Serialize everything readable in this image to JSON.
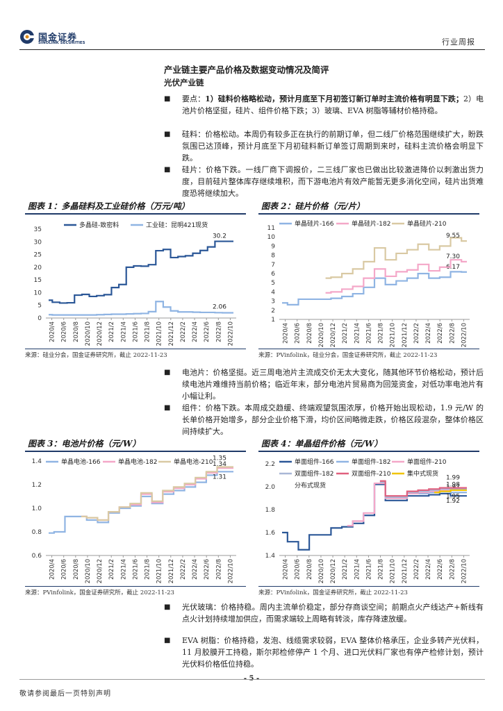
{
  "header": {
    "logo_cn": "国金证券",
    "logo_en": "SINOLINK SECURITIES",
    "report_type": "行业周报"
  },
  "section_title": "产业链主要产品价格及数据变动情况及简评",
  "sub_title": "光伏产业链",
  "bullets_top": [
    {
      "parts": [
        {
          "t": "要点：",
          "b": false
        },
        {
          "t": "1）硅料价格略松动，预计月底至下月初签订新订单时主流价格有明显下跌；",
          "b": true
        },
        {
          "t": "2）电池片价格坚挺，硅片、组件价格下跌；3）玻璃、EVA 树脂等辅材价格持稳。",
          "b": false
        }
      ]
    },
    {
      "parts": [
        {
          "t": "硅料：价格松动。本周仍有较多正在执行的前期订单，但二线厂价格范围继续扩大，盼跌氛围已达顶峰，预计月底至下月初硅料新订单签订周期到来时，硅料主流价格会明显下跌。",
          "b": false
        }
      ]
    },
    {
      "parts": [
        {
          "t": "硅片：价格下跌。一线厂商下调报价，二三线厂家也已做出比较激进降价以刺激出货力度，目前硅片整体库存继续堆积，而下游电池片有效产能暂无更多消化空间，硅片出货难度恐将继续加大。",
          "b": false
        }
      ]
    }
  ],
  "bullets_mid": [
    {
      "parts": [
        {
          "t": "电池片：价格坚挺。近三周电池片主流成交价无太大变化，随其他环节价格松动，预计后续电池片难维持当前价格；临近年末，部分电池片贸易商为回笼资金，对低功率电池片有小幅让利。",
          "b": false
        }
      ]
    },
    {
      "parts": [
        {
          "t": "组件：价格下跌。本周成交趋缓、终端观望氛围浓厚，价格开始出现松动，1.9 元/W 的长单价格开始增多，部分企业价格下滑，均价区间略微走跌，价格区段混杂，整体价格区间持续扩大。",
          "b": false
        }
      ]
    }
  ],
  "bullets_bottom": [
    {
      "parts": [
        {
          "t": "光伏玻璃：价格持稳。周内主流单价稳定，部分存商谈空间；前期点火产线达产+新线有点火计划持续增加供应，而需求端较上周略有转淡，库存降速放缓。",
          "b": false
        }
      ]
    },
    {
      "parts": [
        {
          "t": "EVA 树脂：价格持稳，发泡、线缆需求较弱，EVA 整体价格承压，企业多转产光伏料，11 月胶膜开工持稳，斯尔邦检修停产 1 个月、进口光伏料厂家也有停产检修计划，预计光伏料价格低位持稳。",
          "b": false
        }
      ]
    }
  ],
  "figures": [
    {
      "title": "图表 1：多晶硅料及工业硅价格（万元/吨）",
      "source": "来源：硅业分会，国金证券研究所，截止 2022-11-23"
    },
    {
      "title": "图表 2：硅片价格（元/片）",
      "source": "来源：PVinfolink，硅业分会，国金证券研究所，截止 2022-11-23"
    },
    {
      "title": "图表 3：电池片价格（元/W）",
      "source": "来源：PVinfolink，国金证券研究所，截止 2022-11-23"
    },
    {
      "title": "图表 4：单晶组件价格（元/W）",
      "source": "来源：PVinfolink，国金证券研究所，截止 2022-11-23"
    }
  ],
  "chart_data": [
    {
      "type": "line",
      "x_ticks": [
        "2020/4",
        "2020/6",
        "2020/8",
        "2020/10",
        "2020/12",
        "2021/2",
        "2021/4",
        "2021/6",
        "2021/8",
        "2021/10",
        "2021/12",
        "2022/2",
        "2022/4",
        "2022/6",
        "2022/8",
        "2022/10"
      ],
      "ylim": [
        0,
        35
      ],
      "y_ticks": [
        0,
        5,
        10,
        15,
        20,
        25,
        30,
        35
      ],
      "colors": [
        "#2b5797",
        "#8fb4e3"
      ],
      "series": [
        {
          "name": "多晶硅-致密料",
          "values": [
            7,
            6.2,
            5.9,
            6,
            9,
            9.3,
            8.5,
            8.8,
            9.2,
            12,
            13.2,
            20,
            20.5,
            20.4,
            21,
            26.5,
            27,
            23.8,
            24.2,
            24.5,
            25.5,
            26.6,
            28,
            30.2,
            30.2,
            30.2
          ],
          "end_label": "30.2"
        },
        {
          "name": "工业硅：昆明421现货",
          "values": [
            1.3,
            1.2,
            1.2,
            1.2,
            1.2,
            1.2,
            1.2,
            1.3,
            1.4,
            1.5,
            1.5,
            1.6,
            1.7,
            1.8,
            2.5,
            6.5,
            4.3,
            2.8,
            2.4,
            2.4,
            2.3,
            2.2,
            2.2,
            2.1,
            2.06,
            2.06
          ],
          "end_label": "2.06"
        }
      ]
    },
    {
      "type": "line",
      "x_ticks": [
        "2020/4",
        "2020/6",
        "2020/8",
        "2020/10",
        "2020/12",
        "2021/2",
        "2021/4",
        "2021/6",
        "2021/8",
        "2021/10",
        "2021/12",
        "2022/2",
        "2022/4",
        "2022/6",
        "2022/8",
        "2022/10"
      ],
      "ylim": [
        1,
        11
      ],
      "y_ticks": [
        1,
        2,
        3,
        4,
        5,
        6,
        7,
        8,
        9,
        10,
        11
      ],
      "colors": [
        "#8fb4e3",
        "#f4a7c8",
        "#d9c9a3"
      ],
      "series": [
        {
          "name": "单晶硅片-166",
          "values": [
            2.8,
            2.6,
            3.2,
            3.2,
            3.2,
            3.3,
            3.5,
            3.8,
            4.5,
            5.5,
            4.8,
            5.2,
            5.5,
            6.0,
            5.5,
            5.6,
            6.2,
            6.17
          ],
          "end_label": "6.17"
        },
        {
          "name": "单晶硅片-182",
          "values": [
            null,
            null,
            null,
            null,
            3.9,
            4.0,
            4.3,
            4.6,
            5.5,
            6.5,
            5.7,
            6.2,
            6.4,
            7.0,
            6.3,
            6.7,
            7.5,
            7.3
          ],
          "end_label": "7.30"
        },
        {
          "name": "单晶硅片-210",
          "values": [
            null,
            null,
            null,
            null,
            5.5,
            5.6,
            6.0,
            6.5,
            7.3,
            8.8,
            7.5,
            8.2,
            8.6,
            9.2,
            8.6,
            9.0,
            9.9,
            9.55
          ],
          "end_label": "9.55"
        }
      ]
    },
    {
      "type": "line",
      "x_ticks": [
        "2020/4",
        "2020/6",
        "2020/8",
        "2020/10",
        "2020/12",
        "2021/2",
        "2021/4",
        "2021/6",
        "2021/8",
        "2021/10",
        "2021/12",
        "2022/2",
        "2022/4",
        "2022/6",
        "2022/8",
        "2022/10"
      ],
      "ylim": [
        0.6,
        1.4
      ],
      "y_ticks": [
        0.6,
        0.8,
        1.0,
        1.2,
        1.4
      ],
      "colors": [
        "#8fb4e3",
        "#f4a7c8",
        "#d9c9a3"
      ],
      "series": [
        {
          "name": "单晶电池-166",
          "values": [
            0.79,
            0.8,
            0.93,
            0.93,
            0.9,
            0.88,
            0.96,
            1.0,
            1.02,
            1.1,
            1.04,
            1.12,
            1.15,
            1.18,
            1.22,
            1.28,
            1.31,
            1.31
          ],
          "end_label": "1.31"
        },
        {
          "name": "单晶电池-182",
          "values": [
            null,
            null,
            null,
            0.93,
            0.92,
            0.9,
            0.97,
            1.01,
            1.03,
            1.12,
            1.05,
            1.14,
            1.17,
            1.2,
            1.25,
            1.3,
            1.34,
            1.34
          ],
          "end_label": "1.34"
        },
        {
          "name": "单晶电池-210",
          "values": [
            null,
            null,
            null,
            0.93,
            0.92,
            0.9,
            0.97,
            1.01,
            1.04,
            1.13,
            1.06,
            1.15,
            1.18,
            1.21,
            1.26,
            1.31,
            1.35,
            1.35
          ],
          "end_label": "1.35"
        }
      ]
    },
    {
      "type": "line",
      "x_ticks": [
        "2020/4",
        "2020/6",
        "2020/8",
        "2020/10",
        "2020/12",
        "2021/2",
        "2021/4",
        "2021/6",
        "2021/8",
        "2021/10",
        "2021/12",
        "2022/2",
        "2022/4",
        "2022/6",
        "2022/8",
        "2022/10"
      ],
      "ylim": [
        1.4,
        2.2
      ],
      "y_ticks": [
        1.4,
        1.6,
        1.8,
        2.0,
        2.2
      ],
      "colors": [
        "#2b5797",
        "#8fb4e3",
        "#f4a7c8",
        "#a9b7d6",
        "#e0607e",
        "#f0c400"
      ],
      "series": [
        {
          "name": "单面组件-166",
          "values": [
            1.6,
            1.52,
            1.45,
            1.58,
            1.58,
            1.64,
            1.65,
            1.68,
            1.75,
            2.02,
            1.88,
            1.88,
            1.92,
            1.92,
            1.93,
            1.94,
            1.92,
            1.92
          ],
          "end_label": "1.92"
        },
        {
          "name": "单面组件-182",
          "values": [
            null,
            null,
            null,
            null,
            null,
            null,
            1.66,
            1.7,
            1.77,
            2.03,
            1.9,
            1.9,
            1.94,
            1.94,
            1.95,
            1.96,
            1.95,
            1.95
          ],
          "end_label": "1.95"
        },
        {
          "name": "单面组件-210",
          "values": [
            null,
            null,
            null,
            null,
            null,
            null,
            1.66,
            1.7,
            1.77,
            2.03,
            1.9,
            1.9,
            1.94,
            1.95,
            1.96,
            1.97,
            1.97,
            1.97
          ],
          "end_label": "1.97"
        },
        {
          "name": "双面组件-182",
          "values": [
            null,
            null,
            null,
            null,
            null,
            null,
            null,
            null,
            null,
            2.04,
            1.91,
            1.91,
            1.95,
            1.96,
            1.97,
            1.98,
            1.98,
            1.98
          ],
          "end_label": "1.98"
        },
        {
          "name": "双面组件-210",
          "values": [
            null,
            null,
            null,
            null,
            null,
            null,
            null,
            null,
            null,
            2.05,
            1.92,
            1.92,
            1.96,
            1.97,
            1.98,
            1.99,
            1.99,
            1.99
          ],
          "end_label": "1.99"
        },
        {
          "name": "集中式现货",
          "values": [
            null,
            null,
            null,
            null,
            null,
            null,
            null,
            null,
            null,
            null,
            null,
            null,
            null,
            null,
            1.95,
            1.96,
            1.97,
            1.97
          ],
          "end_label": ""
        },
        {
          "name": "分布式现货",
          "values": [
            null,
            null,
            null,
            null,
            null,
            null,
            null,
            null,
            null,
            null,
            null,
            null,
            null,
            null,
            1.96,
            1.97,
            1.98,
            1.98
          ],
          "end_label": ""
        }
      ]
    }
  ],
  "footer": {
    "page_number": "- 5 -",
    "disclaimer": "敬请参阅最后一页特别声明"
  }
}
